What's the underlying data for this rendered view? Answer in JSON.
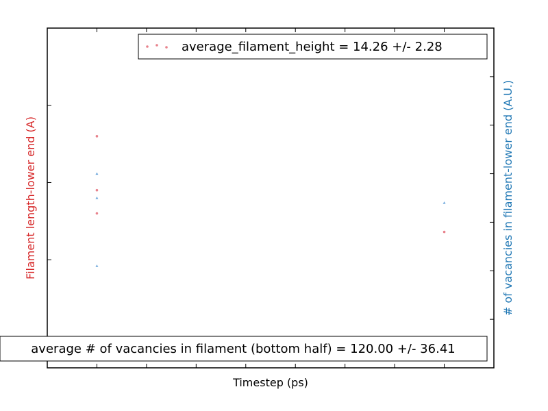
{
  "chart_data": {
    "type": "scatter",
    "xlabel": "Timestep (ps)",
    "ylabel_left": "Filament length-lower end (A)",
    "ylabel_right": "# of vacancies in filament-lower end (A.U.)",
    "ylabel_left_color": "#d62728",
    "ylabel_right_color": "#1f77b4",
    "xlim": [
      0,
      9
    ],
    "x_ticks": [
      1,
      2,
      3,
      4,
      5,
      6,
      7,
      8
    ],
    "ylim_left": [
      0,
      22
    ],
    "y_ticks_left": [
      7,
      12,
      17
    ],
    "ylim_right": [
      0,
      7
    ],
    "y_ticks_right": [
      1,
      2,
      3,
      4,
      5,
      6
    ],
    "tick_labels_shown": false,
    "grid": false,
    "series": [
      {
        "axis": "left",
        "marker": "dot",
        "color": "#e8828c",
        "x": [
          1,
          1,
          1,
          8
        ],
        "y": [
          15.0,
          11.5,
          10.0,
          8.8
        ]
      },
      {
        "axis": "right",
        "marker": "triangle",
        "color": "#6fa8dc",
        "x": [
          1,
          1,
          1,
          8
        ],
        "y": [
          2.1,
          3.5,
          4.0,
          3.4
        ]
      }
    ],
    "legends": [
      {
        "position": "top-right",
        "marker_color": "#e8828c",
        "text": "average_filament_height =  14.26 +/-  2.28"
      },
      {
        "position": "bottom-center",
        "text": "average # of vacancies in filament (bottom half) =  120.00 +/-  36.41"
      }
    ]
  }
}
